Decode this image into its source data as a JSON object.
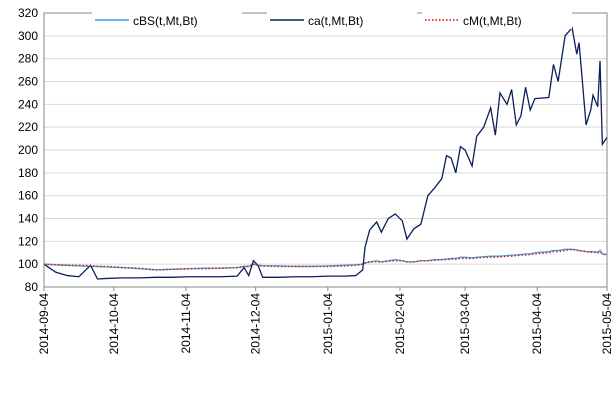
{
  "chart_data": {
    "type": "line",
    "x": [
      "2014-09-04",
      "2014-09-09",
      "2014-09-14",
      "2014-09-19",
      "2014-09-24",
      "2014-09-27",
      "2014-10-01",
      "2014-10-08",
      "2014-10-15",
      "2014-10-22",
      "2014-10-29",
      "2014-11-05",
      "2014-11-12",
      "2014-11-19",
      "2014-11-26",
      "2014-11-29",
      "2014-12-01",
      "2014-12-03",
      "2014-12-05",
      "2014-12-07",
      "2014-12-14",
      "2014-12-21",
      "2014-12-28",
      "2015-01-04",
      "2015-01-11",
      "2015-01-16",
      "2015-01-19",
      "2015-01-20",
      "2015-01-22",
      "2015-01-25",
      "2015-01-27",
      "2015-01-30",
      "2015-02-02",
      "2015-02-05",
      "2015-02-07",
      "2015-02-10",
      "2015-02-13",
      "2015-02-16",
      "2015-02-19",
      "2015-02-22",
      "2015-02-24",
      "2015-02-26",
      "2015-02-28",
      "2015-03-02",
      "2015-03-04",
      "2015-03-07",
      "2015-03-09",
      "2015-03-12",
      "2015-03-15",
      "2015-03-17",
      "2015-03-19",
      "2015-03-22",
      "2015-03-24",
      "2015-03-26",
      "2015-03-28",
      "2015-03-30",
      "2015-04-01",
      "2015-04-03",
      "2015-04-09",
      "2015-04-11",
      "2015-04-13",
      "2015-04-16",
      "2015-04-19",
      "2015-04-21",
      "2015-04-22",
      "2015-04-25",
      "2015-04-27",
      "2015-04-28",
      "2015-04-30",
      "2015-05-01",
      "2015-05-02",
      "2015-05-03",
      "2015-05-04"
    ],
    "series": [
      {
        "name": "cBS(t,Mt,Bt)",
        "color": "#2ea8dc",
        "style": "solid",
        "values": [
          100,
          99.5,
          99,
          98.5,
          98,
          98,
          97.5,
          97,
          96,
          95,
          95.5,
          96,
          96.5,
          96.5,
          97,
          98,
          98,
          100,
          99,
          98.5,
          98.5,
          98,
          98,
          98.5,
          99,
          99.5,
          100,
          101,
          102,
          103,
          102,
          103,
          104,
          103,
          102,
          102,
          103,
          103,
          104,
          104,
          104.5,
          105,
          105,
          106,
          106,
          105.5,
          106,
          106.5,
          107,
          107,
          107,
          107.5,
          108,
          108,
          108.5,
          109,
          109,
          110,
          111,
          112,
          112,
          113,
          113,
          112.5,
          112,
          111,
          111,
          111,
          110.5,
          112,
          109,
          108.5,
          108.5
        ]
      },
      {
        "name": "ca(t,Mt,Bt)",
        "color": "#0b1f5c",
        "style": "solid",
        "values": [
          100,
          93,
          90,
          89,
          99,
          87,
          87.5,
          88,
          88,
          88.5,
          88.5,
          89,
          89,
          89,
          89.5,
          97,
          90,
          103,
          99,
          88.5,
          88.5,
          89,
          89,
          89.5,
          89.5,
          90,
          95,
          115,
          130,
          137,
          128,
          140,
          144,
          138,
          122,
          131,
          135,
          160,
          167,
          175,
          195,
          193,
          180,
          203,
          200,
          186,
          212,
          220,
          237,
          213,
          250,
          240,
          253,
          222,
          230,
          255,
          235,
          245,
          246,
          275,
          260,
          300,
          307,
          284,
          294,
          222,
          235,
          248,
          238,
          278,
          205,
          208,
          211
        ]
      },
      {
        "name": "cM(t,Mt,Bt)",
        "color": "#e0202a",
        "style": "dotted",
        "values": [
          100,
          99.5,
          99,
          99,
          98.5,
          98,
          98,
          97,
          96.5,
          95,
          95.5,
          96,
          96,
          96.5,
          97,
          98,
          98,
          100,
          99,
          98.5,
          98,
          98,
          98,
          98,
          98.5,
          99,
          100,
          101,
          102,
          102,
          102,
          102.5,
          103,
          103,
          102,
          102,
          103,
          103,
          103.5,
          104,
          104,
          104.5,
          104.5,
          105,
          105,
          105,
          105.5,
          106,
          106,
          106,
          106.5,
          107,
          107,
          107.5,
          108,
          108,
          108.5,
          109,
          110,
          111,
          111,
          112,
          113,
          112,
          112,
          111,
          110.5,
          110.5,
          110,
          111,
          109,
          108.5,
          108.5
        ]
      }
    ],
    "xlim": [
      "2014-09-04",
      "2015-05-04"
    ],
    "xticks": [
      "2014-09-04",
      "2014-10-04",
      "2014-11-04",
      "2014-12-04",
      "2015-01-04",
      "2015-02-04",
      "2015-03-04",
      "2015-04-04",
      "2015-05-04"
    ],
    "ylim": [
      80,
      320
    ],
    "yticks": [
      80,
      100,
      120,
      140,
      160,
      180,
      200,
      220,
      240,
      260,
      280,
      300,
      320
    ],
    "grid": true,
    "legend": "top"
  }
}
